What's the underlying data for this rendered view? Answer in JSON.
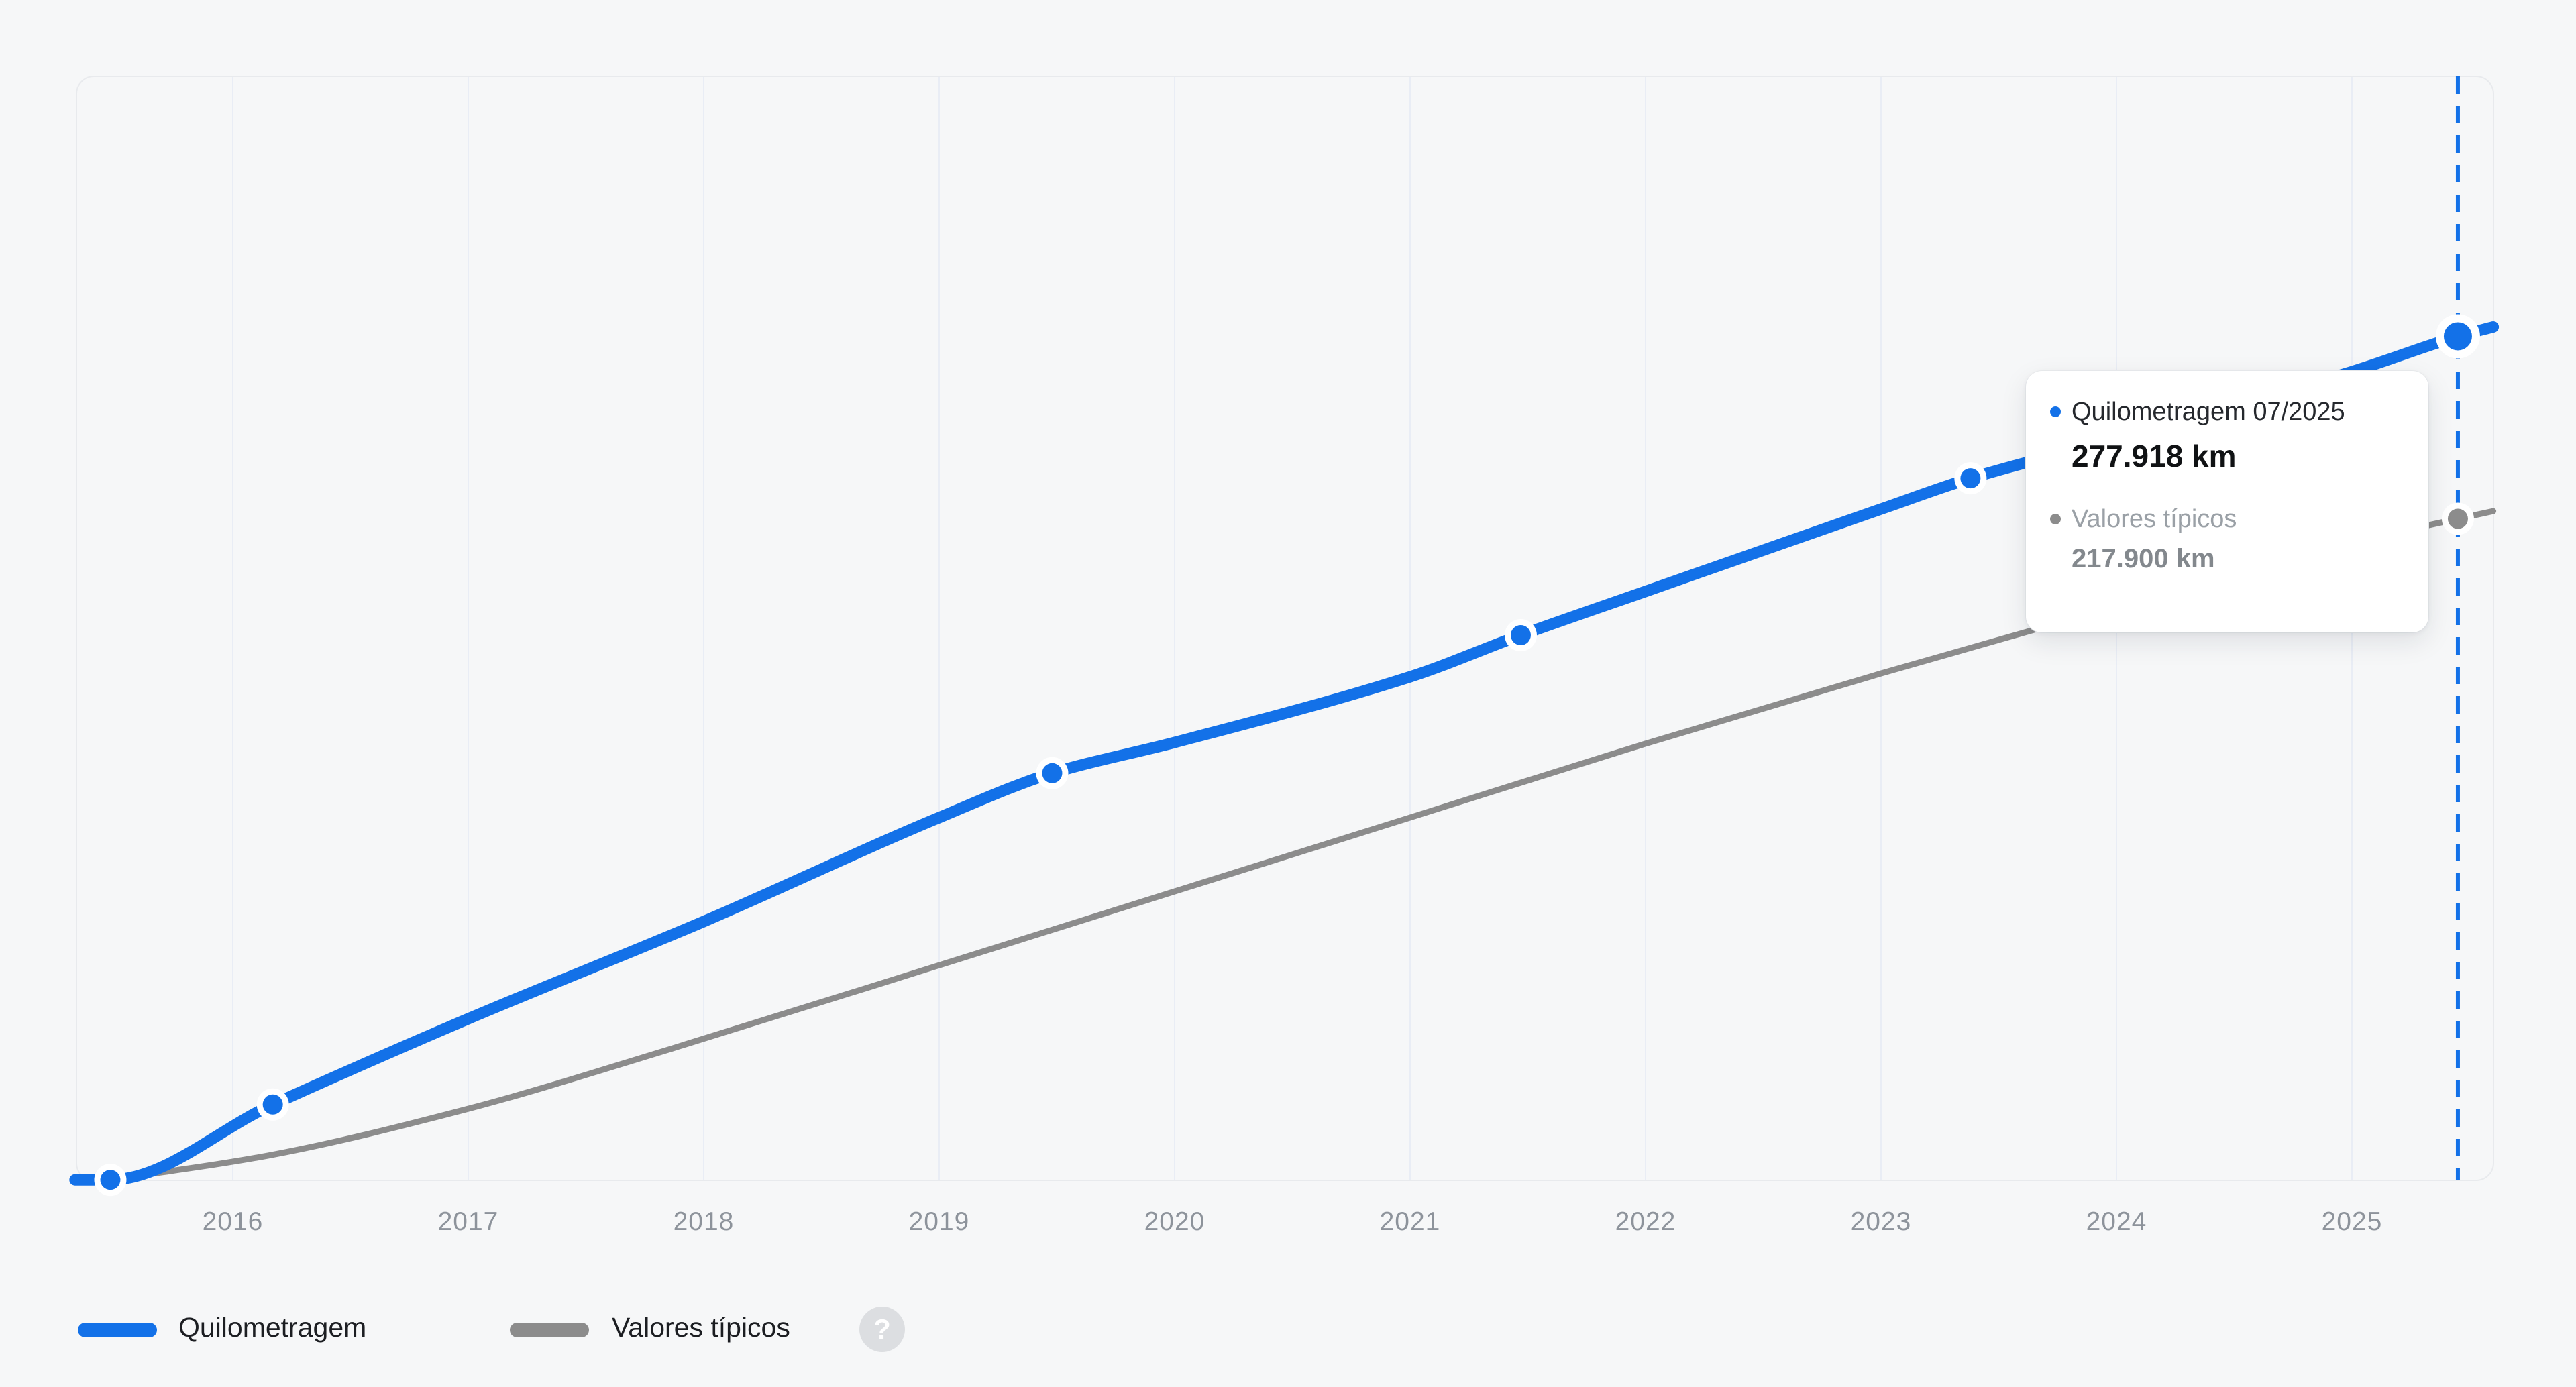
{
  "chart_data": {
    "type": "line",
    "title": "",
    "xlabel": "",
    "ylabel": "",
    "y_unit": "km",
    "x_ticks": [
      "2016",
      "2017",
      "2018",
      "2019",
      "2020",
      "2021",
      "2022",
      "2023",
      "2024",
      "2025"
    ],
    "xlim": [
      2015.33,
      2025.6
    ],
    "ylim": [
      0,
      364000
    ],
    "grid": "vertical-only",
    "legend_position": "bottom-left",
    "series": [
      {
        "name": "Quilometragem",
        "color": "#1371e8",
        "points": [
          [
            2015.33,
            400
          ],
          [
            2015.48,
            400
          ],
          [
            2016.17,
            25200
          ],
          [
            2017.0,
            53400
          ],
          [
            2018.0,
            85400
          ],
          [
            2019.0,
            119600
          ],
          [
            2019.48,
            134200
          ],
          [
            2020.0,
            144300
          ],
          [
            2021.0,
            165900
          ],
          [
            2021.47,
            179600
          ],
          [
            2022.0,
            194000
          ],
          [
            2023.0,
            221100
          ],
          [
            2023.38,
            231200
          ],
          [
            2024.0,
            244300
          ],
          [
            2025.0,
            266300
          ],
          [
            2025.45,
            277918
          ],
          [
            2025.6,
            281000
          ]
        ],
        "markers": [
          {
            "x": 2015.48,
            "y": 400,
            "size": "small"
          },
          {
            "x": 2016.17,
            "y": 25200,
            "size": "small"
          },
          {
            "x": 2019.48,
            "y": 134200,
            "size": "small"
          },
          {
            "x": 2021.47,
            "y": 179600,
            "size": "small"
          },
          {
            "x": 2023.38,
            "y": 231200,
            "size": "small"
          },
          {
            "x": 2025.45,
            "y": 277918,
            "size": "large"
          }
        ]
      },
      {
        "name": "Valores típicos",
        "color": "#8c8c8c",
        "points": [
          [
            2015.48,
            400
          ],
          [
            2016.15,
            8400
          ],
          [
            2017.0,
            23800
          ],
          [
            2017.86,
            43500
          ],
          [
            2019.0,
            71000
          ],
          [
            2020.0,
            95300
          ],
          [
            2021.0,
            119600
          ],
          [
            2022.0,
            143900
          ],
          [
            2023.0,
            167000
          ],
          [
            2024.0,
            189100
          ],
          [
            2025.0,
            210000
          ],
          [
            2025.45,
            217900
          ],
          [
            2025.6,
            220400
          ]
        ],
        "markers": [
          {
            "x": 2025.45,
            "y": 217900,
            "size": "small"
          }
        ]
      }
    ],
    "cursor": {
      "x": 2025.45,
      "style": "dashed",
      "color": "#1371e8"
    }
  },
  "tooltip": {
    "series1_label": "Quilometragem 07/2025",
    "series1_value": "277.918 km",
    "series2_label": "Valores típicos",
    "series2_value": "217.900 km"
  },
  "legend": {
    "item1_label": "Quilometragem",
    "item2_label": "Valores típicos",
    "help_glyph": "?"
  },
  "colors": {
    "background": "#f6f7f8",
    "plot_border": "#e8eaed",
    "gridline": "#e9edf5",
    "axis_text": "#8d939b",
    "series_blue": "#1371e8",
    "series_gray": "#8c8c8c",
    "tooltip_bg": "#ffffff",
    "help_circle_bg": "#dcdee1"
  }
}
